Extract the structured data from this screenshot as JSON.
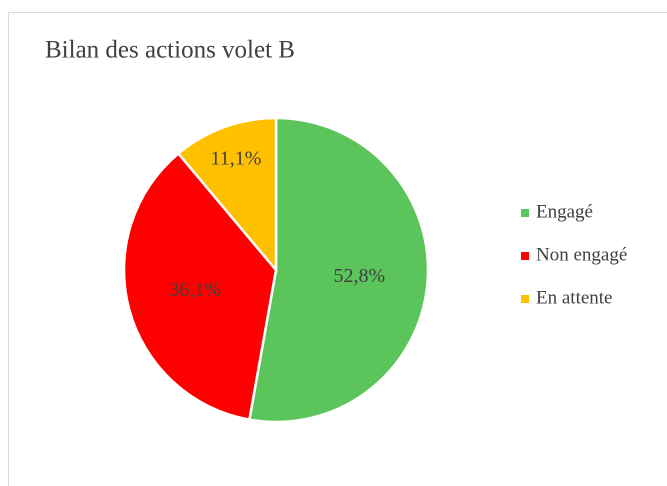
{
  "chart_data": {
    "type": "pie",
    "title": "Bilan des actions volet B",
    "categories": [
      "Engagé",
      "Non engagé",
      "En attente"
    ],
    "values": [
      52.8,
      36.1,
      11.1
    ],
    "value_labels": [
      "52,8%",
      "36,1%",
      "11,1%"
    ],
    "colors": [
      "#5bc55b",
      "#ff0000",
      "#ffc000"
    ],
    "legend": "right"
  }
}
